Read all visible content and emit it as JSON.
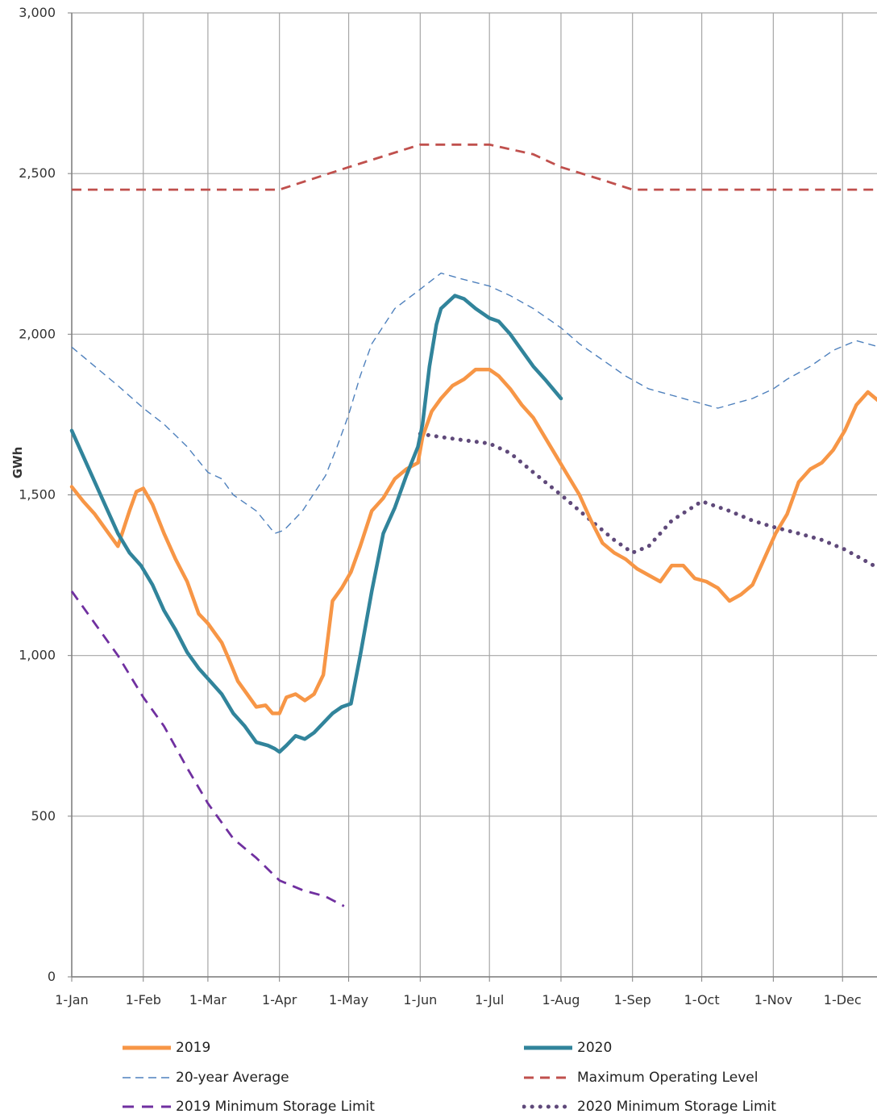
{
  "chart_data": {
    "type": "line",
    "title": "",
    "xlabel": "",
    "ylabel": "GWh",
    "ylim": [
      0,
      3000
    ],
    "yticks": [
      0,
      500,
      1000,
      1500,
      2000,
      2500,
      3000
    ],
    "ytick_labels": [
      "0",
      "500",
      "1,000",
      "1,500",
      "2,000",
      "2,500",
      "3,000"
    ],
    "xlim": [
      0,
      365
    ],
    "xticks": [
      0,
      31,
      59,
      90,
      120,
      151,
      181,
      212,
      243,
      273,
      304,
      334
    ],
    "xtick_labels": [
      "1-Jan",
      "1-Feb",
      "1-Mar",
      "1-Apr",
      "1-May",
      "1-Jun",
      "1-Jul",
      "1-Aug",
      "1-Sep",
      "1-Oct",
      "1-Nov",
      "1-Dec"
    ],
    "grid": true,
    "legend_position": "bottom",
    "series": [
      {
        "name": "2019",
        "color": "#f79646",
        "style": "solid-thick",
        "x": [
          0,
          5,
          10,
          15,
          20,
          25,
          28,
          31,
          35,
          40,
          45,
          50,
          55,
          59,
          62,
          65,
          68,
          72,
          76,
          80,
          84,
          87,
          90,
          93,
          97,
          101,
          105,
          109,
          113,
          117,
          121,
          125,
          130,
          135,
          140,
          145,
          150,
          152,
          156,
          160,
          165,
          170,
          175,
          181,
          185,
          190,
          195,
          200,
          205,
          210,
          215,
          220,
          225,
          230,
          235,
          240,
          245,
          250,
          255,
          260,
          265,
          270,
          275,
          280,
          285,
          290,
          295,
          300,
          305,
          310,
          315,
          320,
          325,
          330,
          335,
          340,
          345,
          350,
          355,
          360,
          365
        ],
        "y": [
          1525,
          1480,
          1440,
          1390,
          1340,
          1450,
          1510,
          1520,
          1470,
          1380,
          1300,
          1230,
          1130,
          1100,
          1070,
          1040,
          990,
          920,
          880,
          840,
          845,
          820,
          820,
          870,
          880,
          860,
          880,
          940,
          1170,
          1210,
          1260,
          1340,
          1450,
          1490,
          1550,
          1580,
          1600,
          1680,
          1760,
          1800,
          1840,
          1860,
          1890,
          1890,
          1870,
          1830,
          1780,
          1740,
          1680,
          1620,
          1560,
          1500,
          1420,
          1350,
          1320,
          1300,
          1270,
          1250,
          1230,
          1280,
          1280,
          1240,
          1230,
          1210,
          1170,
          1190,
          1220,
          1300,
          1380,
          1440,
          1540,
          1580,
          1600,
          1640,
          1700,
          1780,
          1820,
          1790,
          1780,
          1750,
          1730
        ]
      },
      {
        "name": "2020",
        "color": "#31849b",
        "style": "solid-thick",
        "x": [
          0,
          5,
          10,
          15,
          20,
          25,
          30,
          35,
          40,
          45,
          50,
          55,
          60,
          65,
          70,
          75,
          80,
          85,
          88,
          90,
          93,
          97,
          101,
          105,
          109,
          113,
          117,
          121,
          125,
          130,
          135,
          140,
          145,
          150,
          152,
          155,
          158,
          160,
          163,
          166,
          170,
          175,
          181,
          185,
          190,
          195,
          200,
          205,
          212
        ],
        "y": [
          1700,
          1620,
          1540,
          1460,
          1380,
          1320,
          1280,
          1220,
          1140,
          1080,
          1010,
          960,
          920,
          880,
          820,
          780,
          730,
          720,
          710,
          700,
          720,
          750,
          740,
          760,
          790,
          820,
          840,
          850,
          1000,
          1200,
          1380,
          1460,
          1560,
          1650,
          1720,
          1900,
          2030,
          2080,
          2100,
          2120,
          2110,
          2080,
          2050,
          2040,
          2000,
          1950,
          1900,
          1860,
          1800
        ]
      },
      {
        "name": "20-year Average",
        "color": "#4f81bd",
        "style": "dashed-thin",
        "x": [
          0,
          10,
          20,
          31,
          40,
          50,
          59,
          65,
          70,
          80,
          88,
          92,
          100,
          110,
          115,
          120,
          125,
          130,
          140,
          151,
          160,
          170,
          181,
          190,
          200,
          212,
          220,
          230,
          240,
          245,
          250,
          260,
          270,
          280,
          285,
          295,
          304,
          310,
          320,
          330,
          340,
          350,
          365
        ],
        "y": [
          1960,
          1900,
          1840,
          1770,
          1720,
          1650,
          1570,
          1550,
          1500,
          1450,
          1380,
          1390,
          1450,
          1560,
          1650,
          1750,
          1870,
          1970,
          2080,
          2140,
          2190,
          2170,
          2150,
          2120,
          2080,
          2020,
          1970,
          1920,
          1870,
          1850,
          1830,
          1810,
          1790,
          1770,
          1780,
          1800,
          1830,
          1860,
          1900,
          1950,
          1980,
          1960,
          1950
        ]
      },
      {
        "name": "Maximum Operating Level",
        "color": "#c0504d",
        "style": "dashed",
        "x": [
          0,
          31,
          59,
          90,
          120,
          151,
          165,
          181,
          200,
          212,
          230,
          243,
          273,
          304,
          334,
          365
        ],
        "y": [
          2450,
          2450,
          2450,
          2450,
          2520,
          2590,
          2590,
          2590,
          2560,
          2520,
          2480,
          2450,
          2450,
          2450,
          2450,
          2450
        ]
      },
      {
        "name": "2019 Minimum Storage Limit",
        "color": "#7030a0",
        "style": "dashed-long",
        "x": [
          0,
          10,
          20,
          31,
          40,
          50,
          59,
          65,
          70,
          80,
          90,
          100,
          110,
          118
        ],
        "y": [
          1200,
          1100,
          1000,
          870,
          780,
          650,
          540,
          480,
          430,
          370,
          300,
          270,
          250,
          220
        ]
      },
      {
        "name": "2020 Minimum Storage Limit",
        "color": "#5f497a",
        "style": "dotted",
        "x": [
          151,
          160,
          170,
          181,
          190,
          200,
          212,
          225,
          235,
          243,
          250,
          260,
          273,
          285,
          295,
          304,
          315,
          325,
          335,
          345,
          355,
          365
        ],
        "y": [
          1690,
          1680,
          1670,
          1660,
          1630,
          1570,
          1500,
          1420,
          1360,
          1320,
          1340,
          1420,
          1480,
          1450,
          1420,
          1400,
          1380,
          1360,
          1330,
          1290,
          1250,
          1210
        ]
      }
    ]
  }
}
